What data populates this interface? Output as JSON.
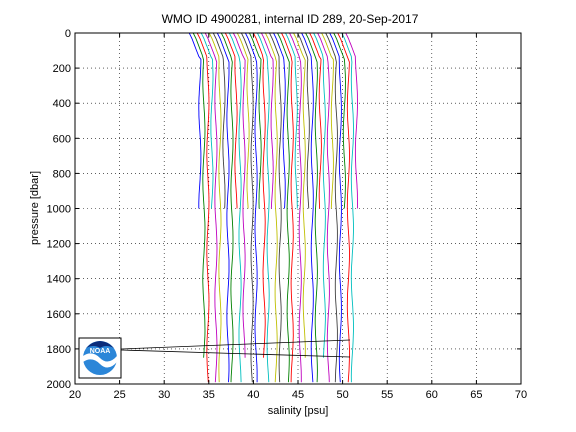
{
  "chart_data": {
    "type": "line",
    "title": "WMO ID 4900281, internal ID 289, 20-Sep-2017",
    "xlabel": "salinity [psu]",
    "ylabel": "pressure [dbar]",
    "xlim": [
      20,
      70
    ],
    "ylim": [
      0,
      2000
    ],
    "y_reversed": true,
    "grid": true,
    "x_ticks": [
      20,
      25,
      30,
      35,
      40,
      45,
      50,
      55,
      60,
      65,
      70
    ],
    "y_ticks": [
      0,
      200,
      400,
      600,
      800,
      1000,
      1200,
      1400,
      1600,
      1800,
      2000
    ],
    "x_tick_labels": [
      "20",
      "25",
      "30",
      "35",
      "40",
      "45",
      "50",
      "55",
      "60",
      "65",
      "70"
    ],
    "y_tick_labels": [
      "0",
      "200",
      "400",
      "600",
      "800",
      "1000",
      "1200",
      "1400",
      "1600",
      "1800",
      "2000"
    ],
    "profile_description": "Stacked salinity profiles (each offset in salinity), many colors, most extend to ~1000 dbar and many to ~1850–2000 dbar",
    "series_colors": [
      "#0000ff",
      "#008000",
      "#ff0000",
      "#00bfbf",
      "#bf00bf",
      "#bfbf00",
      "#404040"
    ],
    "profile_count": 40,
    "salinity_start": 33.7,
    "salinity_step": 0.45,
    "logo": {
      "text": "NOAA",
      "icon": "noaa-logo"
    }
  }
}
